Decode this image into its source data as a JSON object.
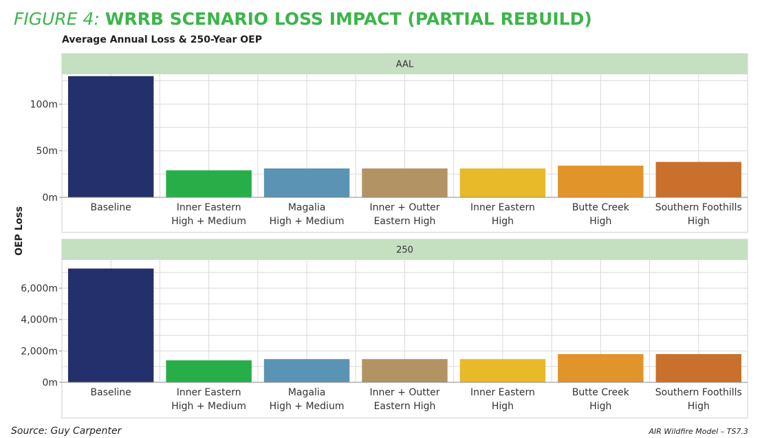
{
  "figure": {
    "title_prefix": "FIGURE 4:",
    "title_main": "WRRB SCENARIO LOSS IMPACT (PARTIAL REBUILD)",
    "subtitle": "Average Annual Loss & 250-Year OEP",
    "source": "Source: Guy Carpenter",
    "footer_note": "AIR Wildfire Model – TS7.3"
  },
  "colors": {
    "title_green": "#3cb54a",
    "panel_header_bg": "#c5dfc1",
    "grid": "#d9d9d9",
    "bars": [
      "#23306b",
      "#27ae48",
      "#5b93b5",
      "#b29464",
      "#e8b928",
      "#e1942a",
      "#c9702c"
    ]
  },
  "chart_data": {
    "type": "bar",
    "ylabel": "OEP Loss",
    "categories": [
      [
        "Baseline"
      ],
      [
        "Inner Eastern",
        "High + Medium"
      ],
      [
        "Magalia",
        "High + Medium"
      ],
      [
        "Inner + Outter",
        "Eastern High"
      ],
      [
        "Inner Eastern",
        "High"
      ],
      [
        "Butte Creek",
        "High"
      ],
      [
        "Southern Foothills",
        "High"
      ]
    ],
    "panels": [
      {
        "name": "AAL",
        "values": [
          130,
          29,
          31,
          31,
          31,
          34,
          38
        ],
        "ylim": [
          0,
          132
        ],
        "ticks": [
          0,
          50,
          100
        ],
        "tick_labels": [
          "0m",
          "50m",
          "100m"
        ],
        "grid": true
      },
      {
        "name": "250",
        "values": [
          7250,
          1400,
          1480,
          1480,
          1480,
          1800,
          1800
        ],
        "ylim": [
          0,
          7800
        ],
        "ticks": [
          0,
          2000,
          4000,
          6000
        ],
        "tick_labels": [
          "0m",
          "2,000m",
          "4,000m",
          "6,000m"
        ],
        "grid": true
      }
    ]
  }
}
